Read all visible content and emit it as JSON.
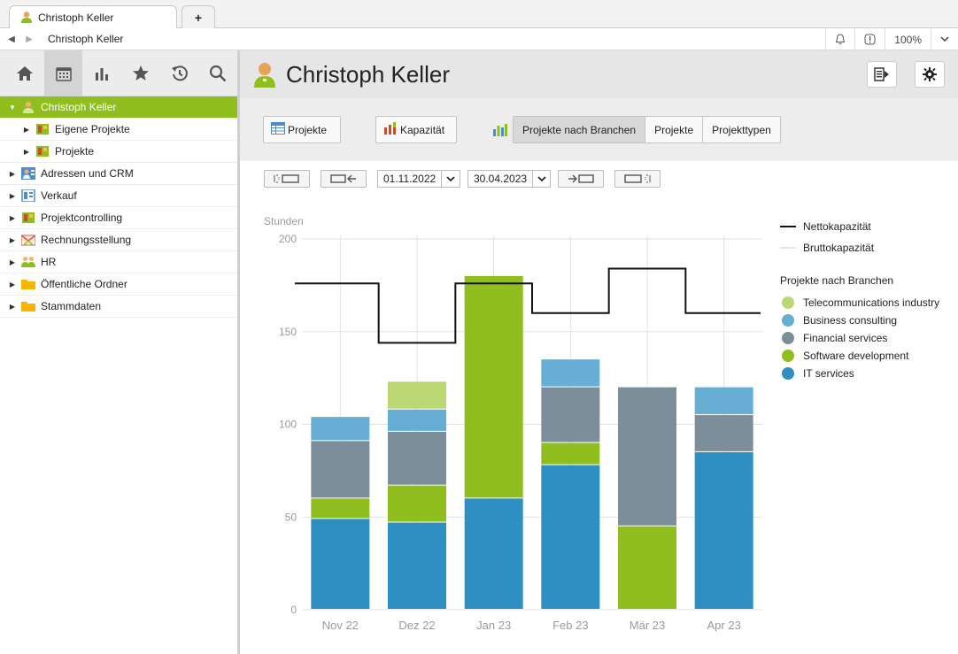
{
  "tab": {
    "title": "Christoph Keller",
    "add_label": "+"
  },
  "address": {
    "text": "Christoph Keller",
    "zoom": "100%"
  },
  "sidebar": {
    "toolbar": [
      "home-icon",
      "calendar-icon",
      "chart-icon",
      "star-icon",
      "history-icon",
      "search-icon"
    ],
    "tree": [
      {
        "label": "Christoph Keller",
        "level": 1,
        "expanded": true,
        "selected": true,
        "icon": "person-icon"
      },
      {
        "label": "Eigene Projekte",
        "level": 2,
        "icon": "project-icon"
      },
      {
        "label": "Projekte",
        "level": 2,
        "icon": "project-icon"
      },
      {
        "label": "Adressen und CRM",
        "level": 1,
        "icon": "crm-icon"
      },
      {
        "label": "Verkauf",
        "level": 1,
        "icon": "sales-icon"
      },
      {
        "label": "Projektcontrolling",
        "level": 1,
        "icon": "controlling-icon"
      },
      {
        "label": "Rechnungsstellung",
        "level": 1,
        "icon": "invoice-icon"
      },
      {
        "label": "HR",
        "level": 1,
        "icon": "hr-icon"
      },
      {
        "label": "Öffentliche Ordner",
        "level": 1,
        "icon": "folder-icon"
      },
      {
        "label": "Stammdaten",
        "level": 1,
        "icon": "folder-icon"
      }
    ]
  },
  "header": {
    "title": "Christoph Keller"
  },
  "toolbar": {
    "projekte_label": "Projekte",
    "kapazitaet_label": "Kapazität",
    "segments": [
      "Projekte nach Branchen",
      "Projekte",
      "Projekttypen"
    ],
    "active_segment": 0
  },
  "dates": {
    "from": "01.11.2022",
    "to": "30.04.2023"
  },
  "legend": {
    "netto": "Nettokapazität",
    "brutto": "Bruttokapazität",
    "group_title": "Projekte nach Branchen",
    "items": [
      {
        "name": "Telecommunications industry",
        "color": "#bcd874"
      },
      {
        "name": "Business consulting",
        "color": "#66aed3"
      },
      {
        "name": "Financial services",
        "color": "#7d8e9b"
      },
      {
        "name": "Software development",
        "color": "#8fbe1e"
      },
      {
        "name": "IT services",
        "color": "#2d8fc2"
      }
    ]
  },
  "chart_data": {
    "type": "bar",
    "stacked": true,
    "ylabel": "Stunden",
    "ylim": [
      0,
      200
    ],
    "yticks": [
      0,
      50,
      100,
      150,
      200
    ],
    "categories": [
      "Nov 22",
      "Dez 22",
      "Jan 23",
      "Feb 23",
      "Mär 23",
      "Apr 23"
    ],
    "series": [
      {
        "name": "IT services",
        "color": "#2d8fc2",
        "values": [
          49,
          47,
          60,
          78,
          0,
          85
        ]
      },
      {
        "name": "Software development",
        "color": "#8fbe1e",
        "values": [
          11,
          20,
          120,
          12,
          45,
          0
        ]
      },
      {
        "name": "Financial services",
        "color": "#7d8e9b",
        "values": [
          31,
          29,
          0,
          30,
          75,
          20
        ]
      },
      {
        "name": "Business consulting",
        "color": "#66aed3",
        "values": [
          13,
          12,
          0,
          15,
          0,
          15
        ]
      },
      {
        "name": "Telecommunications industry",
        "color": "#bcd874",
        "values": [
          0,
          15,
          0,
          0,
          0,
          0
        ]
      }
    ],
    "lines": [
      {
        "name": "Nettokapazität",
        "color": "#111111",
        "values": [
          176,
          144,
          176,
          160,
          184,
          160
        ]
      }
    ],
    "grid": true,
    "legend_position": "right"
  }
}
